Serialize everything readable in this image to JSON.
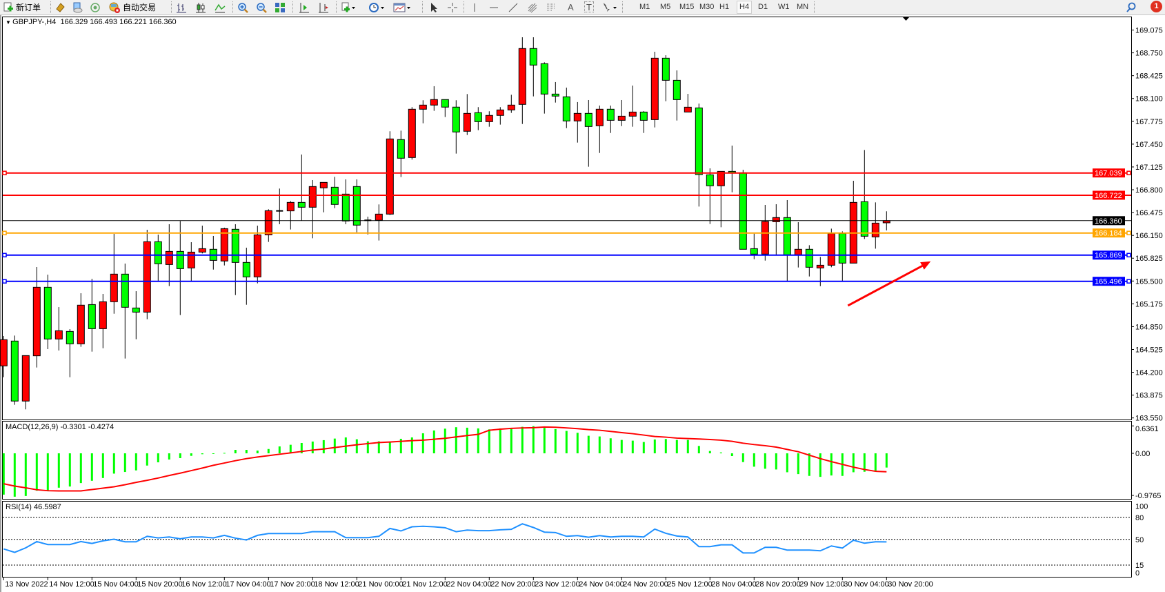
{
  "toolbar": {
    "new_order_label": "新订单",
    "auto_trading_label": "自动交易",
    "icons": [
      "new-order-icon",
      "market-watch-icon",
      "navigator-icon",
      "signals-icon",
      "auto-trading-icon",
      "bar-chart-icon",
      "candlestick-icon",
      "line-chart-icon",
      "zoom-in-icon",
      "zoom-out-icon",
      "tile-windows-icon",
      "auto-scroll-icon",
      "chart-shift-icon",
      "indicators-icon",
      "periods-icon",
      "templates-icon",
      "cursor-icon",
      "crosshair-icon",
      "vertical-line-icon",
      "horizontal-line-icon",
      "trendline-icon",
      "fibo-fan-icon",
      "fibo-retracement-icon",
      "text-icon",
      "text-label-icon",
      "arrows-icon",
      "search-icon",
      "notifications-icon"
    ],
    "periods": [
      "M1",
      "M5",
      "M15",
      "M30",
      "H1",
      "H4",
      "D1",
      "W1",
      "MN"
    ],
    "active_period": "H4",
    "text_tool_label": "A",
    "label_tool_label": "T",
    "notification_count": "1"
  },
  "chart": {
    "symbol": "GBPJPY-,H4",
    "ohlc": "166.329 166.493 166.221 166.360",
    "macd_label": "MACD(12,26,9) -0.3301 -0.4274",
    "rsi_label": "RSI(14) 46.5987"
  },
  "chart_data": {
    "type": "candlestick",
    "timeframe": "H4",
    "up_color": "#ff0000",
    "down_color": "#00ff00",
    "candles_ohlc": [
      [
        164.291,
        164.717,
        164.13,
        164.664
      ],
      [
        164.645,
        164.723,
        163.737,
        163.79
      ],
      [
        163.79,
        164.438,
        163.672,
        164.438
      ],
      [
        164.435,
        165.699,
        164.268,
        165.411
      ],
      [
        165.411,
        165.591,
        164.53,
        164.674
      ],
      [
        164.674,
        165.129,
        164.51,
        164.792
      ],
      [
        164.782,
        164.815,
        164.13,
        164.605
      ],
      [
        164.605,
        165.326,
        164.563,
        165.156
      ],
      [
        165.165,
        165.532,
        164.494,
        164.821
      ],
      [
        164.821,
        165.316,
        164.543,
        165.205
      ],
      [
        165.205,
        166.171,
        165.034,
        165.598
      ],
      [
        165.598,
        165.749,
        164.396,
        165.126
      ],
      [
        165.116,
        165.355,
        164.671,
        165.057
      ],
      [
        165.057,
        166.23,
        164.956,
        166.06
      ],
      [
        166.06,
        166.161,
        165.5,
        165.745
      ],
      [
        165.735,
        166.309,
        165.428,
        165.922
      ],
      [
        165.922,
        166.355,
        165.015,
        165.676
      ],
      [
        165.686,
        166.053,
        165.5,
        165.912
      ],
      [
        165.912,
        166.289,
        165.893,
        165.961
      ],
      [
        165.952,
        166.142,
        165.663,
        165.794
      ],
      [
        165.785,
        166.26,
        165.722,
        166.246
      ],
      [
        166.237,
        166.309,
        165.3,
        165.765
      ],
      [
        165.765,
        165.975,
        165.162,
        165.559
      ],
      [
        165.559,
        166.289,
        165.467,
        166.158
      ],
      [
        166.158,
        166.522,
        166.057,
        166.502
      ],
      [
        166.499,
        166.817,
        166.309,
        166.499
      ],
      [
        166.499,
        166.64,
        166.234,
        166.62
      ],
      [
        166.62,
        167.302,
        166.358,
        166.551
      ],
      [
        166.551,
        166.938,
        166.109,
        166.846
      ],
      [
        166.827,
        166.905,
        166.479,
        166.905
      ],
      [
        166.836,
        166.984,
        166.538,
        166.591
      ],
      [
        166.738,
        166.948,
        166.309,
        166.355
      ],
      [
        166.846,
        166.948,
        166.194,
        166.296
      ],
      [
        166.365,
        166.417,
        166.162,
        166.365
      ],
      [
        166.365,
        166.591,
        166.077,
        166.453
      ],
      [
        166.453,
        167.633,
        166.44,
        167.524
      ],
      [
        167.515,
        167.642,
        166.981,
        167.249
      ],
      [
        167.259,
        167.977,
        167.23,
        167.947
      ],
      [
        167.947,
        168.075,
        167.747,
        168.006
      ],
      [
        168.006,
        168.275,
        167.924,
        168.085
      ],
      [
        168.085,
        168.085,
        167.836,
        167.977
      ],
      [
        167.977,
        168.075,
        167.315,
        167.623
      ],
      [
        167.633,
        168.163,
        167.58,
        167.888
      ],
      [
        167.898,
        167.977,
        167.649,
        167.77
      ],
      [
        167.77,
        167.918,
        167.698,
        167.859
      ],
      [
        167.859,
        167.977,
        167.728,
        167.937
      ],
      [
        167.937,
        168.153,
        167.895,
        168.006
      ],
      [
        168.016,
        168.972,
        167.737,
        168.812
      ],
      [
        168.812,
        168.972,
        168.13,
        168.576
      ],
      [
        168.596,
        168.615,
        167.885,
        168.163
      ],
      [
        168.163,
        168.334,
        168.042,
        168.134
      ],
      [
        168.124,
        168.255,
        167.678,
        167.78
      ],
      [
        167.78,
        168.049,
        167.472,
        167.888
      ],
      [
        167.888,
        168.078,
        167.128,
        167.701
      ],
      [
        167.711,
        167.999,
        167.324,
        167.947
      ],
      [
        167.947,
        167.999,
        167.609,
        167.789
      ],
      [
        167.789,
        168.078,
        167.707,
        167.848
      ],
      [
        167.848,
        168.284,
        167.698,
        167.907
      ],
      [
        167.907,
        167.92,
        167.609,
        167.789
      ],
      [
        167.799,
        168.766,
        167.688,
        168.674
      ],
      [
        168.674,
        168.716,
        168.061,
        168.359
      ],
      [
        168.359,
        168.5,
        167.786,
        168.084
      ],
      [
        167.907,
        168.166,
        167.907,
        167.976
      ],
      [
        167.966,
        168.028,
        166.561,
        167.016
      ],
      [
        167.013,
        167.105,
        166.312,
        166.856
      ],
      [
        166.856,
        167.062,
        166.266,
        167.062
      ],
      [
        167.062,
        167.429,
        166.764,
        167.042
      ],
      [
        167.042,
        167.085,
        165.952,
        165.952
      ],
      [
        165.961,
        166.174,
        165.811,
        165.883
      ],
      [
        165.883,
        166.584,
        165.791,
        166.348
      ],
      [
        166.344,
        166.594,
        165.873,
        166.404
      ],
      [
        166.404,
        166.653,
        165.496,
        165.873
      ],
      [
        165.873,
        166.338,
        165.693,
        165.952
      ],
      [
        165.952,
        166.01,
        165.565,
        165.696
      ],
      [
        165.686,
        165.843,
        165.427,
        165.725
      ],
      [
        165.725,
        166.246,
        165.696,
        166.178
      ],
      [
        166.178,
        166.207,
        165.496,
        165.755
      ],
      [
        165.755,
        166.928,
        165.755,
        166.62
      ],
      [
        166.63,
        167.367,
        166.099,
        166.138
      ],
      [
        166.128,
        166.62,
        165.961,
        166.325
      ],
      [
        166.329,
        166.493,
        166.221,
        166.36
      ]
    ],
    "price_ticks": [
      "169.075",
      "168.750",
      "168.425",
      "168.100",
      "167.775",
      "167.450",
      "167.125",
      "166.800",
      "166.475",
      "166.150",
      "165.825",
      "165.500",
      "165.175",
      "164.850",
      "164.525",
      "164.200",
      "163.875",
      "163.550"
    ],
    "price_range": [
      163.55,
      169.075
    ],
    "horizontal_lines": [
      {
        "price": 167.039,
        "label": "167.039",
        "color": "#ff0000",
        "selected": true
      },
      {
        "price": 166.722,
        "label": "166.722",
        "color": "#ff0000",
        "selected": false
      },
      {
        "price": 166.36,
        "label": "166.360",
        "color": "#000000",
        "selected": false
      },
      {
        "price": 166.184,
        "label": "166.184",
        "color": "#ffa500",
        "selected": true
      },
      {
        "price": 165.869,
        "label": "165.869",
        "color": "#0000ff",
        "selected": true
      },
      {
        "price": 165.496,
        "label": "165.496",
        "color": "#0000ff",
        "selected": true
      }
    ],
    "annotation_arrow": {
      "color": "#ff0000",
      "from_bar": 76.5,
      "from_price": 165.15,
      "to_bar": 84,
      "to_price": 165.78
    },
    "time_labels": [
      "13 Nov 2022",
      "14 Nov 12:00",
      "15 Nov 04:00",
      "15 Nov 20:00",
      "16 Nov 12:00",
      "17 Nov 04:00",
      "17 Nov 20:00",
      "18 Nov 12:00",
      "21 Nov 00:00",
      "21 Nov 12:00",
      "22 Nov 04:00",
      "22 Nov 20:00",
      "23 Nov 12:00",
      "24 Nov 04:00",
      "24 Nov 20:00",
      "25 Nov 12:00",
      "28 Nov 04:00",
      "28 Nov 20:00",
      "29 Nov 12:00",
      "30 Nov 04:00",
      "30 Nov 20:00"
    ],
    "macd": {
      "axis_labels": [
        "0.6361",
        "0.00",
        "-0.9765"
      ],
      "axis_values": [
        0.6361,
        0,
        -0.9765
      ],
      "histogram_color": "#00ff00",
      "signal_color": "#ff0000",
      "histogram": [
        -0.958,
        -1.006,
        -0.99,
        -0.867,
        -0.856,
        -0.797,
        -0.77,
        -0.69,
        -0.637,
        -0.573,
        -0.471,
        -0.433,
        -0.396,
        -0.284,
        -0.209,
        -0.144,
        -0.112,
        -0.059,
        -0.021,
        -0.005,
        0.01,
        0.08,
        0.08,
        0.064,
        0.1,
        0.16,
        0.198,
        0.24,
        0.273,
        0.305,
        0.342,
        0.369,
        0.326,
        0.278,
        0.278,
        0.257,
        0.337,
        0.369,
        0.465,
        0.53,
        0.572,
        0.605,
        0.594,
        0.578,
        0.556,
        0.578,
        0.589,
        0.615,
        0.631,
        0.589,
        0.562,
        0.519,
        0.476,
        0.407,
        0.391,
        0.348,
        0.31,
        0.294,
        0.262,
        0.321,
        0.332,
        0.31,
        0.31,
        0.171,
        0.054,
        0.02,
        -0.064,
        -0.203,
        -0.31,
        -0.358,
        -0.375,
        -0.439,
        -0.482,
        -0.524,
        -0.546,
        -0.514,
        -0.524,
        -0.439,
        -0.428,
        -0.401,
        -0.3301
      ],
      "signal": [
        -0.706,
        -0.76,
        -0.8,
        -0.845,
        -0.867,
        -0.872,
        -0.872,
        -0.872,
        -0.84,
        -0.808,
        -0.776,
        -0.728,
        -0.674,
        -0.626,
        -0.573,
        -0.514,
        -0.46,
        -0.401,
        -0.342,
        -0.278,
        -0.225,
        -0.171,
        -0.123,
        -0.086,
        -0.054,
        -0.021,
        0.01,
        0.043,
        0.075,
        0.1,
        0.134,
        0.166,
        0.198,
        0.225,
        0.25,
        0.262,
        0.278,
        0.294,
        0.305,
        0.326,
        0.348,
        0.38,
        0.412,
        0.44,
        0.535,
        0.56,
        0.578,
        0.589,
        0.594,
        0.61,
        0.605,
        0.589,
        0.572,
        0.55,
        0.535,
        0.508,
        0.48,
        0.455,
        0.423,
        0.39,
        0.375,
        0.353,
        0.342,
        0.332,
        0.32,
        0.305,
        0.278,
        0.235,
        0.203,
        0.177,
        0.144,
        0.09,
        0.037,
        -0.043,
        -0.123,
        -0.193,
        -0.257,
        -0.321,
        -0.375,
        -0.417,
        -0.4274
      ]
    },
    "rsi": {
      "period": 14,
      "color": "#1e90ff",
      "axis_labels": [
        "100",
        "80",
        "50",
        "15",
        "0"
      ],
      "axis_values": [
        100,
        80,
        50,
        15,
        0
      ],
      "levels": [
        80,
        50,
        15
      ],
      "values": [
        37,
        32.3,
        38.5,
        47,
        43,
        43,
        43,
        47,
        44.5,
        48,
        50.2,
        46.7,
        46.7,
        54.2,
        52,
        53.3,
        50.8,
        53.3,
        53.3,
        52,
        55.5,
        51.7,
        49.2,
        55.5,
        58,
        58,
        58,
        58,
        60.5,
        60.5,
        60.5,
        52.4,
        52.4,
        52.4,
        54.2,
        64.9,
        61.5,
        67.1,
        67.8,
        67.1,
        65.9,
        60.5,
        62.7,
        61.8,
        61.8,
        63,
        63.7,
        71.2,
        66.2,
        59.9,
        59.3,
        54.2,
        55.2,
        53,
        55.2,
        53.3,
        54.2,
        54.2,
        53.3,
        64,
        58.3,
        54.6,
        53.3,
        40.1,
        40.1,
        42.6,
        42.6,
        31.6,
        31.6,
        39.2,
        39.2,
        35.4,
        35.4,
        35.4,
        34.5,
        41.1,
        38.2,
        48.9,
        44.8,
        46.7,
        46.5987
      ]
    }
  }
}
